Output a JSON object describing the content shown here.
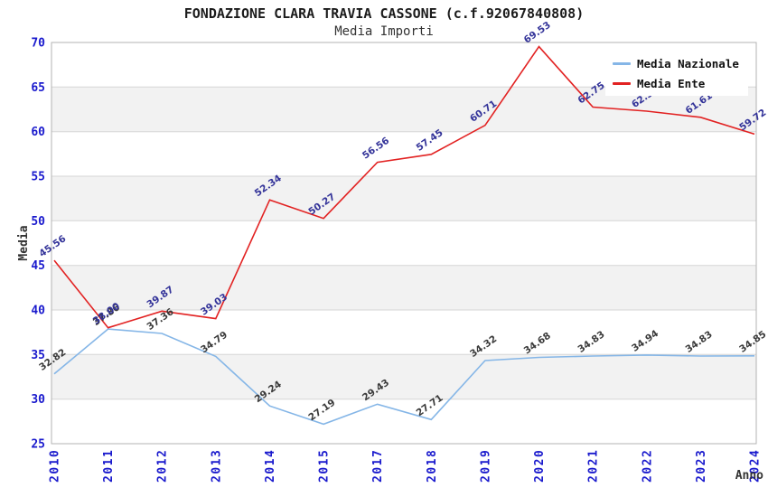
{
  "chart_data": {
    "type": "line",
    "title": "FONDAZIONE CLARA TRAVIA CASSONE (c.f.92067840808)",
    "subtitle": "Media Importi",
    "xlabel": "Anno",
    "ylabel": "Media",
    "categories": [
      "2010",
      "2011",
      "2012",
      "2013",
      "2014",
      "2015",
      "2017",
      "2018",
      "2019",
      "2020",
      "2021",
      "2022",
      "2023",
      "2024"
    ],
    "series": [
      {
        "name": "Media Nazionale",
        "color": "#85B6E7",
        "label_color": "#3a3a3a",
        "values": [
          32.82,
          37.86,
          37.36,
          34.79,
          29.24,
          27.19,
          29.43,
          27.71,
          34.32,
          34.68,
          34.83,
          34.94,
          34.83,
          34.85
        ]
      },
      {
        "name": "Media Ente",
        "color": "#E22222",
        "label_color": "#333399",
        "values": [
          45.56,
          38.0,
          39.87,
          39.03,
          52.34,
          50.27,
          56.56,
          57.45,
          60.71,
          69.53,
          62.75,
          62.3,
          61.61,
          59.72
        ]
      }
    ],
    "ylim": [
      25,
      70
    ],
    "y_ticks": [
      25,
      30,
      35,
      40,
      45,
      50,
      55,
      60,
      65,
      70
    ],
    "y_tick_step": 5,
    "grid": true,
    "legend_position": "top-right",
    "data_labels": true,
    "styles": {
      "tick_label_color": "#1a1acd",
      "band_color": "#f2f2f2",
      "grid_color": "#d6d6d6",
      "border_color": "#b3b3b3",
      "title_color": "#1c1c1c",
      "axis_title_color": "#333333",
      "legend_text_color": "#111111",
      "background": "#ffffff"
    }
  }
}
